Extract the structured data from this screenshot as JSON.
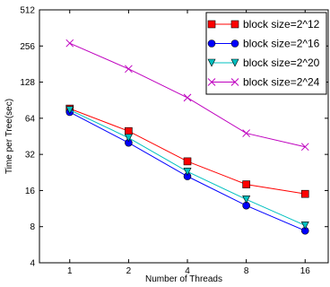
{
  "chart_data": {
    "type": "line",
    "xlabel": "Number of Threads",
    "ylabel": "Time per Tree(sec)",
    "x_scale": "log2",
    "y_scale": "log2",
    "x": [
      1,
      2,
      4,
      8,
      16
    ],
    "x_tick_labels": [
      "1",
      "2",
      "4",
      "8",
      "16"
    ],
    "y_ticks": [
      4,
      8,
      16,
      32,
      64,
      128,
      256,
      512
    ],
    "y_tick_labels": [
      "4",
      "8",
      "16",
      "32",
      "64",
      "128",
      "256",
      "512"
    ],
    "xlim": [
      0.7,
      21
    ],
    "ylim": [
      4,
      512
    ],
    "grid": false,
    "legend_position": "top-right",
    "series": [
      {
        "name": "block size=2^12",
        "color": "#ff0000",
        "marker": "square",
        "values": [
          77,
          50,
          28,
          18,
          15
        ]
      },
      {
        "name": "block size=2^16",
        "color": "#0000ff",
        "marker": "circle",
        "values": [
          72,
          40,
          21,
          12,
          7.4
        ]
      },
      {
        "name": "block size=2^20",
        "color": "#00c0c0",
        "marker": "triangle-down",
        "values": [
          75,
          44,
          23,
          13.5,
          8.2
        ]
      },
      {
        "name": "block size=2^24",
        "color": "#bf00bf",
        "marker": "x",
        "values": [
          270,
          165,
          95,
          48,
          37
        ]
      }
    ]
  }
}
